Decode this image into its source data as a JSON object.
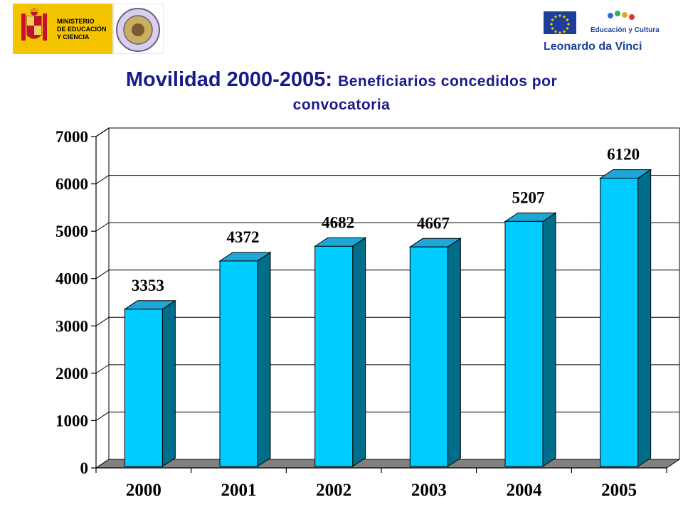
{
  "header": {
    "ministry_text": [
      "MINISTERIO",
      "DE EDUCACIÓN",
      "Y CIENCIA"
    ],
    "program_tagline": "Educación y Cultura",
    "program_name": "Leonardo da Vinci"
  },
  "title": {
    "main": "Movilidad 2000-2005:",
    "subtitle_part1": "Beneficiarios concedidos por",
    "subtitle_part2": "convocatoria"
  },
  "colors": {
    "bar_front": "#00ccff",
    "bar_side": "#006d8a",
    "bar_top": "#1da6d6",
    "floor": "#808080",
    "title": "#1a1a8c",
    "spain_yellow": "#f5c400",
    "eu_blue": "#1d3f99"
  },
  "chart_data": {
    "type": "bar",
    "categories": [
      "2000",
      "2001",
      "2002",
      "2003",
      "2004",
      "2005"
    ],
    "values": [
      3353,
      4372,
      4682,
      4667,
      5207,
      6120
    ],
    "data_labels": [
      "3353",
      "4372",
      "4682",
      "4667",
      "5207",
      "6120"
    ],
    "title": "Movilidad 2000-2005: Beneficiarios concedidos por convocatoria",
    "xlabel": "",
    "ylabel": "",
    "ylim": [
      0,
      7000
    ],
    "yticks": [
      "0",
      "1000",
      "2000",
      "3000",
      "4000",
      "5000",
      "6000",
      "7000"
    ],
    "style": "3d",
    "grid": true,
    "legend": "none"
  }
}
